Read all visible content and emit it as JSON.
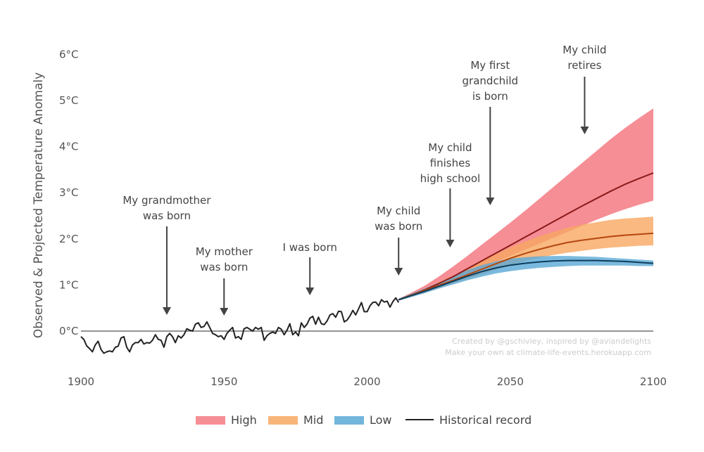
{
  "chart_data": {
    "type": "area",
    "ylabel": "Observed & Projected Temperature Anomaly",
    "xlim": [
      1900,
      2100
    ],
    "ylim": [
      -0.6,
      6.0
    ],
    "xticks": [
      "1900",
      "1950",
      "2000",
      "2050",
      "2100"
    ],
    "yticks": [
      "0°C",
      "1°C",
      "2°C",
      "3°C",
      "4°C",
      "5°C",
      "6°C"
    ],
    "grid": false,
    "legend_position": "bottom",
    "legend": [
      {
        "label": "High",
        "color": "#f47a82",
        "kind": "band"
      },
      {
        "label": "Mid",
        "color": "#f7a862",
        "kind": "band"
      },
      {
        "label": "Low",
        "color": "#5aa9d6",
        "kind": "band"
      },
      {
        "label": "Historical record",
        "color": "#222222",
        "kind": "line"
      }
    ],
    "historical": {
      "name": "Historical record",
      "x": [
        1900,
        1901,
        1902,
        1903,
        1904,
        1905,
        1906,
        1907,
        1908,
        1909,
        1910,
        1911,
        1912,
        1913,
        1914,
        1915,
        1916,
        1917,
        1918,
        1919,
        1920,
        1921,
        1922,
        1923,
        1924,
        1925,
        1926,
        1927,
        1928,
        1929,
        1930,
        1931,
        1932,
        1933,
        1934,
        1935,
        1936,
        1937,
        1938,
        1939,
        1940,
        1941,
        1942,
        1943,
        1944,
        1945,
        1946,
        1947,
        1948,
        1949,
        1950,
        1951,
        1952,
        1953,
        1954,
        1955,
        1956,
        1957,
        1958,
        1959,
        1960,
        1961,
        1962,
        1963,
        1964,
        1965,
        1966,
        1967,
        1968,
        1969,
        1970,
        1971,
        1972,
        1973,
        1974,
        1975,
        1976,
        1977,
        1978,
        1979,
        1980,
        1981,
        1982,
        1983,
        1984,
        1985,
        1986,
        1987,
        1988,
        1989,
        1990,
        1991,
        1992,
        1993,
        1994,
        1995,
        1996,
        1997,
        1998,
        1999,
        2000,
        2001,
        2002,
        2003,
        2004,
        2005,
        2006,
        2007,
        2008,
        2009,
        2010,
        2011
      ],
      "y": [
        -0.12,
        -0.18,
        -0.32,
        -0.38,
        -0.45,
        -0.3,
        -0.22,
        -0.4,
        -0.48,
        -0.45,
        -0.43,
        -0.45,
        -0.35,
        -0.33,
        -0.15,
        -0.12,
        -0.35,
        -0.45,
        -0.3,
        -0.25,
        -0.25,
        -0.18,
        -0.28,
        -0.25,
        -0.26,
        -0.2,
        -0.08,
        -0.18,
        -0.2,
        -0.35,
        -0.12,
        -0.05,
        -0.12,
        -0.25,
        -0.1,
        -0.15,
        -0.08,
        0.05,
        0.02,
        0.0,
        0.15,
        0.18,
        0.08,
        0.1,
        0.2,
        0.08,
        -0.05,
        -0.08,
        -0.12,
        -0.1,
        -0.18,
        -0.05,
        0.02,
        0.08,
        -0.15,
        -0.12,
        -0.18,
        0.05,
        0.08,
        0.04,
        0.0,
        0.08,
        0.04,
        0.08,
        -0.2,
        -0.1,
        -0.05,
        -0.02,
        -0.05,
        0.08,
        0.04,
        -0.08,
        0.02,
        0.16,
        -0.08,
        -0.02,
        -0.1,
        0.18,
        0.08,
        0.15,
        0.28,
        0.32,
        0.15,
        0.3,
        0.16,
        0.14,
        0.22,
        0.35,
        0.38,
        0.3,
        0.43,
        0.42,
        0.2,
        0.24,
        0.33,
        0.45,
        0.35,
        0.48,
        0.62,
        0.42,
        0.42,
        0.55,
        0.62,
        0.63,
        0.55,
        0.68,
        0.63,
        0.65,
        0.52,
        0.64,
        0.72,
        0.62
      ]
    },
    "projections": {
      "x": [
        2011,
        2015,
        2020,
        2025,
        2030,
        2035,
        2040,
        2045,
        2050,
        2055,
        2060,
        2065,
        2070,
        2075,
        2080,
        2085,
        2090,
        2095,
        2100
      ],
      "high": {
        "name": "High",
        "median": [
          0.68,
          0.77,
          0.89,
          1.03,
          1.18,
          1.35,
          1.52,
          1.69,
          1.86,
          2.03,
          2.2,
          2.37,
          2.54,
          2.71,
          2.87,
          3.03,
          3.18,
          3.31,
          3.43
        ],
        "lower": [
          0.66,
          0.74,
          0.85,
          0.97,
          1.1,
          1.24,
          1.37,
          1.5,
          1.63,
          1.76,
          1.89,
          2.02,
          2.15,
          2.28,
          2.41,
          2.53,
          2.64,
          2.74,
          2.83
        ],
        "upper": [
          0.7,
          0.82,
          0.98,
          1.18,
          1.4,
          1.63,
          1.87,
          2.11,
          2.35,
          2.6,
          2.86,
          3.12,
          3.38,
          3.64,
          3.9,
          4.16,
          4.4,
          4.62,
          4.83
        ]
      },
      "mid": {
        "name": "Mid",
        "median": [
          0.68,
          0.77,
          0.88,
          0.99,
          1.1,
          1.22,
          1.34,
          1.46,
          1.58,
          1.68,
          1.77,
          1.85,
          1.92,
          1.97,
          2.01,
          2.05,
          2.08,
          2.1,
          2.12
        ],
        "lower": [
          0.66,
          0.74,
          0.83,
          0.93,
          1.03,
          1.13,
          1.23,
          1.33,
          1.43,
          1.52,
          1.59,
          1.65,
          1.7,
          1.74,
          1.78,
          1.81,
          1.83,
          1.85,
          1.86
        ],
        "upper": [
          0.7,
          0.8,
          0.92,
          1.06,
          1.2,
          1.36,
          1.52,
          1.67,
          1.81,
          1.94,
          2.05,
          2.15,
          2.24,
          2.31,
          2.36,
          2.41,
          2.44,
          2.46,
          2.48
        ]
      },
      "low": {
        "name": "Low",
        "median": [
          0.68,
          0.76,
          0.86,
          0.97,
          1.08,
          1.19,
          1.29,
          1.37,
          1.43,
          1.47,
          1.5,
          1.52,
          1.53,
          1.53,
          1.53,
          1.52,
          1.51,
          1.49,
          1.47
        ],
        "lower": [
          0.66,
          0.73,
          0.82,
          0.92,
          1.01,
          1.1,
          1.18,
          1.25,
          1.3,
          1.34,
          1.37,
          1.39,
          1.41,
          1.42,
          1.42,
          1.42,
          1.42,
          1.41,
          1.41
        ],
        "upper": [
          0.7,
          0.8,
          0.92,
          1.05,
          1.19,
          1.32,
          1.43,
          1.51,
          1.57,
          1.6,
          1.62,
          1.63,
          1.63,
          1.62,
          1.61,
          1.59,
          1.57,
          1.55,
          1.53
        ]
      }
    },
    "annotations": [
      {
        "lines": [
          "My grandmother",
          "was born"
        ],
        "year": 1930
      },
      {
        "lines": [
          "My mother",
          "was born"
        ],
        "year": 1950
      },
      {
        "lines": [
          "I was born"
        ],
        "year": 1980
      },
      {
        "lines": [
          "My child",
          "was born"
        ],
        "year": 2011
      },
      {
        "lines": [
          "My child",
          "finishes",
          "high school"
        ],
        "year": 2029
      },
      {
        "lines": [
          "My first",
          "grandchild",
          "is born"
        ],
        "year": 2043
      },
      {
        "lines": [
          "My child",
          "retires"
        ],
        "year": 2076
      }
    ],
    "credits": [
      "Created by @gschivley, inspired by @aviandelights",
      "Make your own at climate-life-events.herokuapp.com"
    ]
  }
}
